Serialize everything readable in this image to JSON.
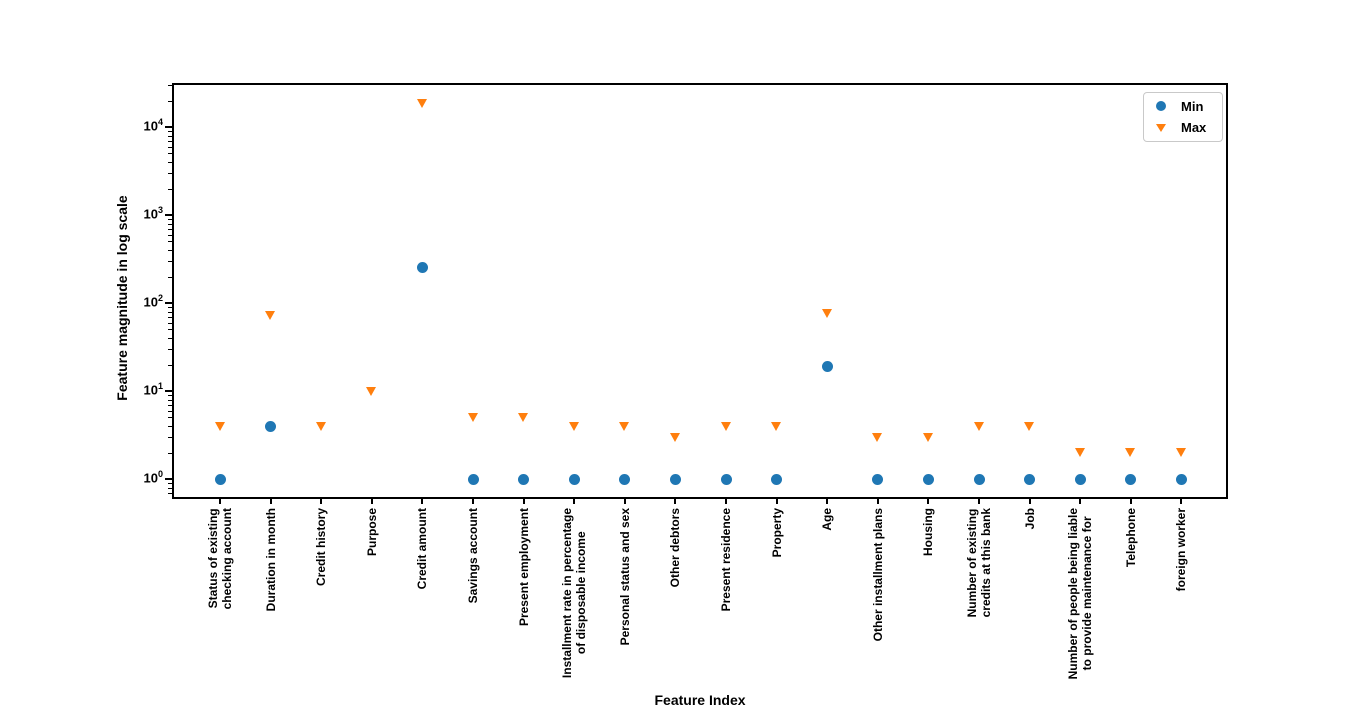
{
  "chart_data": {
    "type": "scatter",
    "title": "",
    "xlabel": "Feature Index",
    "ylabel": "Feature magnitude in log scale",
    "yscale": "log",
    "ylim": [
      0.59,
      31600
    ],
    "grid": false,
    "legend_position": "upper right",
    "yticks": [
      {
        "base": "10",
        "exp": "0",
        "value": 1
      },
      {
        "base": "10",
        "exp": "1",
        "value": 10
      },
      {
        "base": "10",
        "exp": "2",
        "value": 100
      },
      {
        "base": "10",
        "exp": "3",
        "value": 1000
      },
      {
        "base": "10",
        "exp": "4",
        "value": 10000
      }
    ],
    "categories": [
      "Status of existing\nchecking account",
      "Duration in month",
      "Credit history",
      "Purpose",
      "Credit amount",
      "Savings account",
      "Present employment",
      "Installment rate in percentage\nof disposable income",
      "Personal status and sex",
      "Other debtors",
      "Present residence",
      "Property",
      "Age",
      "Other installment plans",
      "Housing",
      "Number of existing\ncredits at this bank",
      "Job",
      "Number of people being liable\nto provide maintenance for",
      "Telephone",
      "foreign worker"
    ],
    "series": [
      {
        "name": "Min",
        "marker": "circle",
        "color": "#1f77b4",
        "values": [
          1,
          4,
          null,
          null,
          250,
          1,
          1,
          1,
          1,
          1,
          1,
          1,
          19,
          1,
          1,
          1,
          1,
          1,
          1,
          1
        ]
      },
      {
        "name": "Max",
        "marker": "triangle-down",
        "color": "#ff7f0e",
        "values": [
          4,
          72,
          4,
          10,
          18424,
          5,
          5,
          4,
          4,
          3,
          4,
          4,
          75,
          3,
          3,
          4,
          4,
          2,
          2,
          2
        ]
      }
    ]
  }
}
